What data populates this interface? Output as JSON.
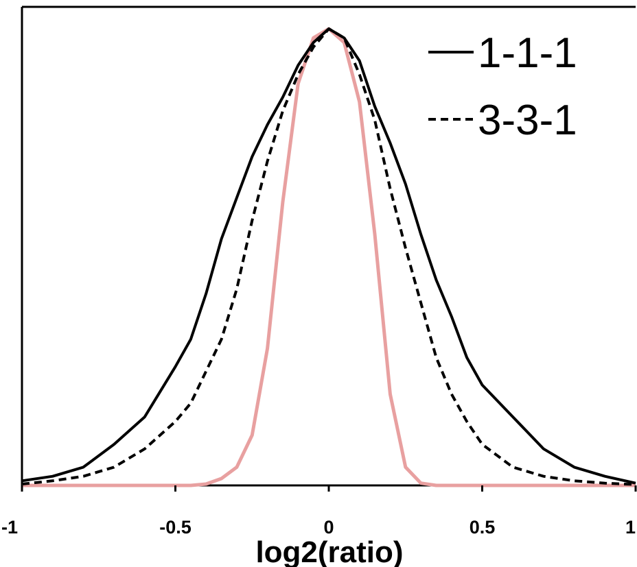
{
  "chart_data": {
    "type": "line",
    "title": "",
    "xlabel": "log2(ratio)",
    "ylabel": "",
    "xlim": [
      -1,
      1
    ],
    "ylim": [
      0,
      1
    ],
    "grid": false,
    "legend_position": "top-right",
    "x_ticks": [
      {
        "value": -1,
        "label": "-1"
      },
      {
        "value": -0.5,
        "label": "-0.5"
      },
      {
        "value": 0,
        "label": "0"
      },
      {
        "value": 0.5,
        "label": "0.5"
      },
      {
        "value": 1,
        "label": "1"
      }
    ],
    "x": [
      -1.0,
      -0.9,
      -0.8,
      -0.7,
      -0.6,
      -0.5,
      -0.45,
      -0.4,
      -0.35,
      -0.3,
      -0.25,
      -0.2,
      -0.15,
      -0.1,
      -0.05,
      0.0,
      0.05,
      0.1,
      0.15,
      0.2,
      0.25,
      0.3,
      0.35,
      0.4,
      0.45,
      0.5,
      0.6,
      0.7,
      0.8,
      0.9,
      1.0
    ],
    "series": [
      {
        "name": "1-1-1",
        "color": "#000000",
        "style": "solid",
        "values": [
          0.01,
          0.02,
          0.04,
          0.09,
          0.15,
          0.26,
          0.32,
          0.42,
          0.54,
          0.63,
          0.72,
          0.79,
          0.85,
          0.92,
          0.97,
          1.0,
          0.98,
          0.93,
          0.83,
          0.75,
          0.66,
          0.55,
          0.45,
          0.37,
          0.28,
          0.22,
          0.15,
          0.08,
          0.04,
          0.02,
          0.005
        ]
      },
      {
        "name": "3-3-1",
        "color": "#000000",
        "style": "dashed",
        "values": [
          0.003,
          0.01,
          0.02,
          0.04,
          0.08,
          0.14,
          0.18,
          0.25,
          0.32,
          0.43,
          0.58,
          0.71,
          0.82,
          0.9,
          0.96,
          1.0,
          0.98,
          0.9,
          0.8,
          0.65,
          0.52,
          0.4,
          0.28,
          0.2,
          0.14,
          0.09,
          0.04,
          0.02,
          0.01,
          0.005,
          0.002
        ]
      },
      {
        "name": "",
        "color": "#e8a0a0",
        "style": "solid",
        "values": [
          0,
          0,
          0,
          0,
          0,
          0,
          0,
          0.003,
          0.015,
          0.04,
          0.11,
          0.3,
          0.62,
          0.88,
          0.98,
          1.0,
          0.97,
          0.84,
          0.55,
          0.2,
          0.04,
          0.005,
          0,
          0,
          0,
          0,
          0,
          0,
          0,
          0,
          0
        ]
      }
    ]
  }
}
